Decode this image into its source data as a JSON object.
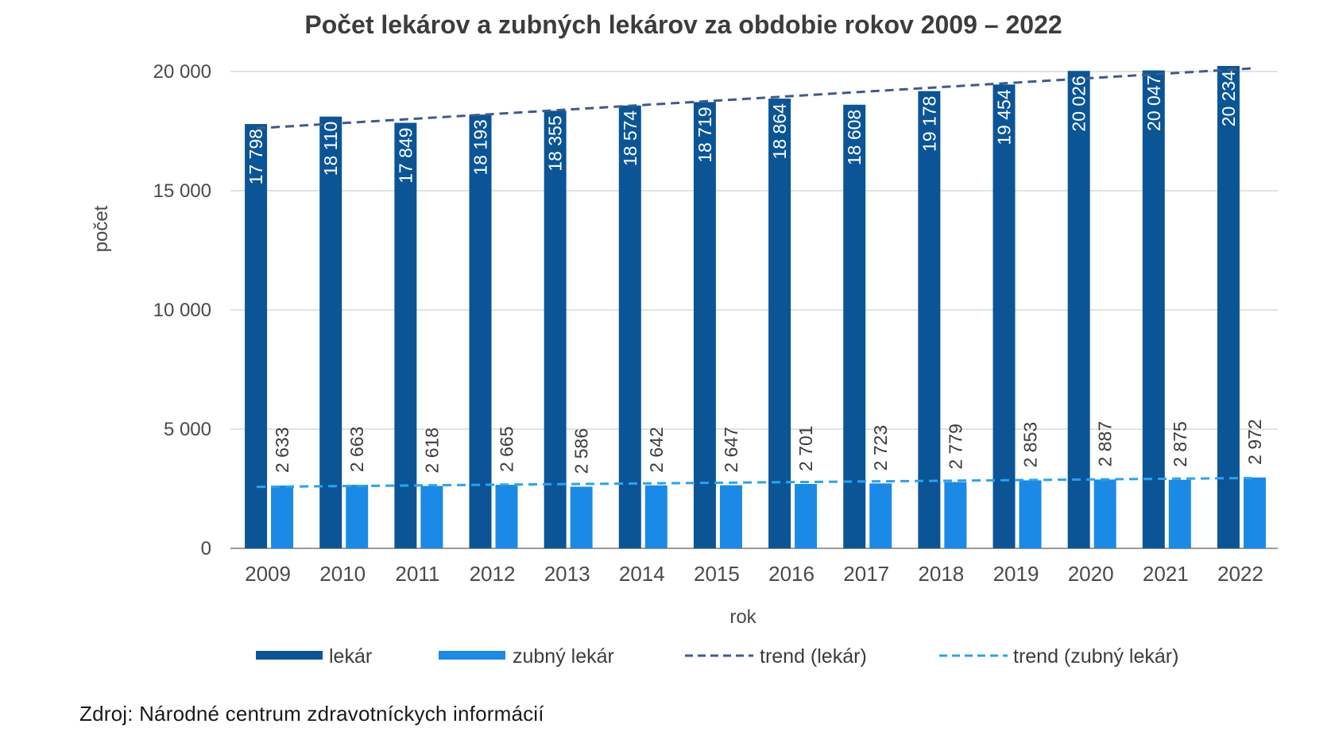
{
  "chart_data": {
    "type": "bar",
    "title": "Počet lekárov a zubných lekárov za obdobie rokov 2009 – 2022",
    "xlabel": "rok",
    "ylabel": "počet",
    "ylim": [
      0,
      20000
    ],
    "yticks": [
      0,
      5000,
      10000,
      15000,
      20000
    ],
    "ytick_labels": [
      "0",
      "5 000",
      "10 000",
      "15 000",
      "20 000"
    ],
    "grid": true,
    "legend_position": "bottom",
    "categories": [
      "2009",
      "2010",
      "2011",
      "2012",
      "2013",
      "2014",
      "2015",
      "2016",
      "2017",
      "2018",
      "2019",
      "2020",
      "2021",
      "2022"
    ],
    "series": [
      {
        "name": "lekár",
        "color": "#0b5597",
        "values": [
          17798,
          18110,
          17849,
          18193,
          18355,
          18574,
          18719,
          18864,
          18608,
          19178,
          19454,
          20026,
          20047,
          20234
        ],
        "labels": [
          "17 798",
          "18 110",
          "17 849",
          "18 193",
          "18 355",
          "18 574",
          "18 719",
          "18 864",
          "18 608",
          "19 178",
          "19 454",
          "20 026",
          "20 047",
          "20 234"
        ]
      },
      {
        "name": "zubný lekár",
        "color": "#1a8ae6",
        "values": [
          2633,
          2663,
          2618,
          2665,
          2586,
          2642,
          2647,
          2701,
          2723,
          2779,
          2853,
          2887,
          2875,
          2972
        ],
        "labels": [
          "2 633",
          "2 663",
          "2 618",
          "2 665",
          "2 586",
          "2 642",
          "2 647",
          "2 701",
          "2 723",
          "2 779",
          "2 853",
          "2 887",
          "2 875",
          "2 972"
        ]
      }
    ],
    "trendlines": [
      {
        "name": "trend (lekár)",
        "color": "#3f5a8f",
        "style": "dashed",
        "start": 17620,
        "end": 20130
      },
      {
        "name": "trend (zubný lekár)",
        "color": "#2aa3ee",
        "style": "dashed",
        "start": 2580,
        "end": 2950
      }
    ]
  },
  "source": "Zdroj: Národné centrum zdravotníckych  informácií"
}
